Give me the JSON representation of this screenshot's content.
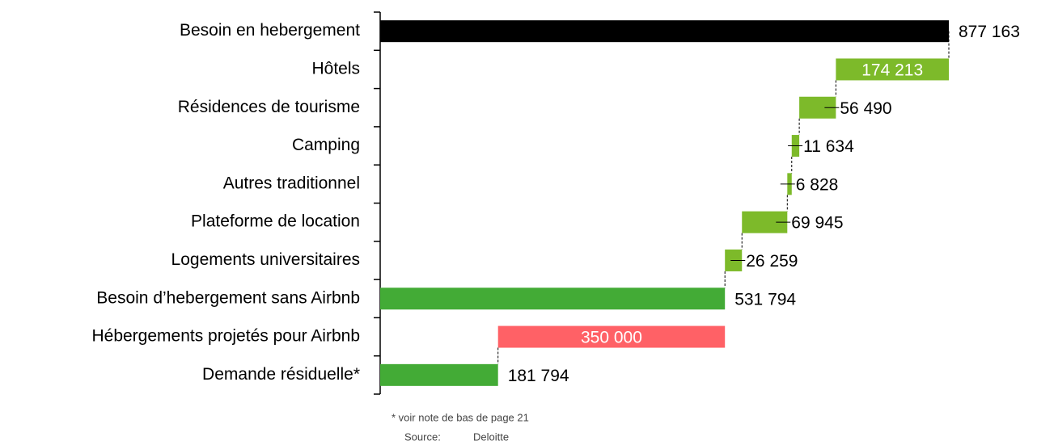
{
  "chart_data": {
    "type": "waterfall",
    "categories": [
      "Besoin en hebergement",
      "Hôtels",
      "Résidences de tourisme",
      "Camping",
      "Autres traditionnel",
      "Plateforme de location",
      "Logements universitaires",
      "Besoin d’hebergement sans Airbnb",
      "Hébergements projetés pour Airbnb",
      "Demande résiduelle*"
    ],
    "values": [
      877163,
      174213,
      56490,
      11634,
      6828,
      69945,
      26259,
      531794,
      350000,
      181794
    ],
    "value_labels": [
      "877 163",
      "174 213",
      "56 490",
      "11 634",
      "6 828",
      "69 945",
      "26 259",
      "531 794",
      "350 000",
      "181 794"
    ],
    "measure": [
      "total",
      "decrease",
      "decrease",
      "decrease",
      "decrease",
      "decrease",
      "decrease",
      "total",
      "decrease",
      "total"
    ],
    "colors": [
      "#000000",
      "#7dba2a",
      "#7dba2a",
      "#7dba2a",
      "#7dba2a",
      "#7dba2a",
      "#7dba2a",
      "#43ab36",
      "#ff6166",
      "#43ab36"
    ],
    "footnote": "* voir note de bas de page 21",
    "source_label": "Source:",
    "source": "Deloitte"
  }
}
